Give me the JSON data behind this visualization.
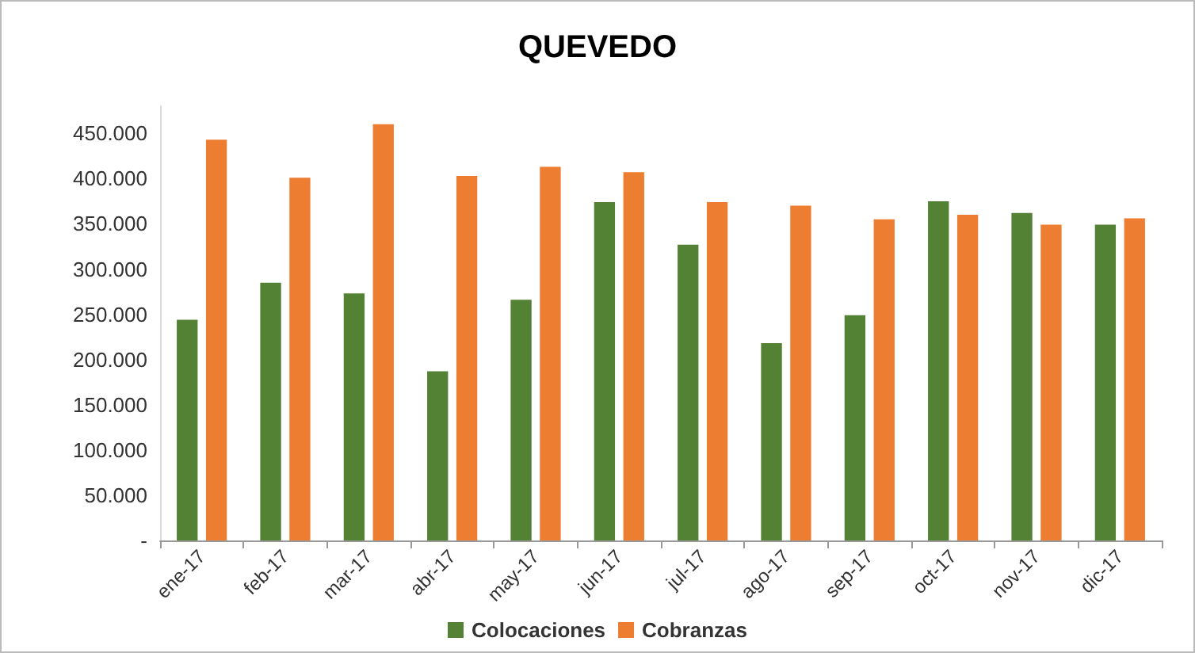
{
  "chart_data": {
    "type": "bar",
    "title": "QUEVEDO",
    "categories": [
      "ene-17",
      "feb-17",
      "mar-17",
      "abr-17",
      "may-17",
      "jun-17",
      "jul-17",
      "ago-17",
      "sep-17",
      "oct-17",
      "nov-17",
      "dic-17"
    ],
    "series": [
      {
        "name": "Colocaciones",
        "color": "#548235",
        "values": [
          244000,
          285000,
          273000,
          187000,
          266000,
          374000,
          327000,
          218000,
          249000,
          375000,
          362000,
          349000
        ]
      },
      {
        "name": "Cobranzas",
        "color": "#ed7d31",
        "values": [
          443000,
          401000,
          460000,
          403000,
          413000,
          407000,
          374000,
          370000,
          355000,
          360000,
          349000,
          356000
        ]
      }
    ],
    "ylim": [
      0,
      480000
    ],
    "yticks": [
      {
        "value": 0,
        "label": "-"
      },
      {
        "value": 50000,
        "label": "50.000"
      },
      {
        "value": 100000,
        "label": "100.000"
      },
      {
        "value": 150000,
        "label": "150.000"
      },
      {
        "value": 200000,
        "label": "200.000"
      },
      {
        "value": 250000,
        "label": "250.000"
      },
      {
        "value": 300000,
        "label": "300.000"
      },
      {
        "value": 350000,
        "label": "350.000"
      },
      {
        "value": 400000,
        "label": "400.000"
      },
      {
        "value": 450000,
        "label": "450.000"
      }
    ],
    "grid": false,
    "legend": "bottom"
  }
}
